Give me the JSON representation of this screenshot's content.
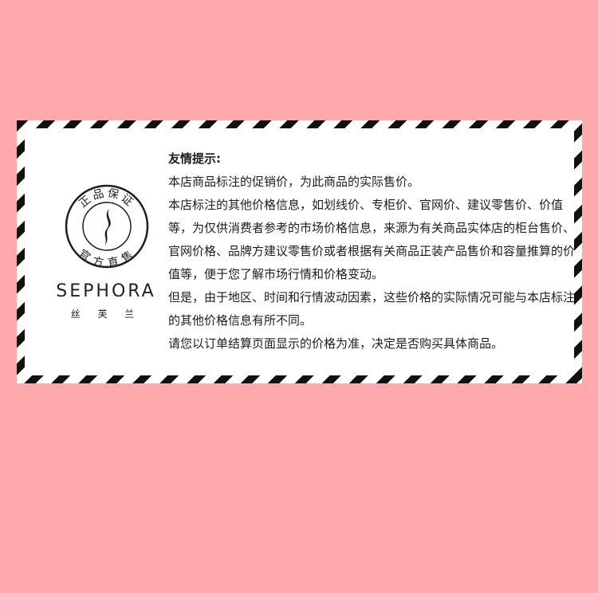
{
  "notice": {
    "title": "友情提示:",
    "paragraphs": [
      "本店商品标注的促销价，为此商品的实际售价。",
      "本店标注的其他价格信息，如划线价、专柜价、官网价、建议零售价、价值等，为仅供消费者参考的市场价格信息，来源为有关商品实体店的柜台售价、官网价格、品牌方建议零售价或者根据有关商品正装产品售价和容量推算的价值等，便于您了解市场行情和价格变动。",
      "但是，由于地区、时间和行情波动因素，这些价格的实际情况可能与本店标注的其他价格信息有所不同。",
      "请您以订单结算页面显示的价格为准，决定是否购买具体商品。"
    ]
  },
  "brand": {
    "name": "SEPHORA",
    "subname": "丝 芙 兰",
    "seal_top": "正品保证",
    "seal_bottom": "官方直售",
    "seal_icon": "sephora-flame-icon"
  },
  "colors": {
    "background": "#ffa9ad",
    "stripe": "#111111",
    "card": "#ffffff",
    "text": "#1d1d1d"
  }
}
